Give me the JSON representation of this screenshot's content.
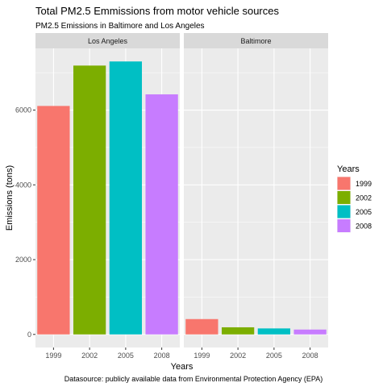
{
  "chart_data": {
    "type": "bar",
    "title": "Total PM2.5 Emmissions from motor vehicle sources",
    "subtitle": "PM2.5 Emissions in Baltimore and Los Angeles",
    "xlabel": "Years",
    "ylabel": "Emissions (tons)",
    "caption": "Datasource: publicly available data from Environmental Protection Agency (EPA)",
    "categories": [
      "1999",
      "2002",
      "2005",
      "2008"
    ],
    "ylim": [
      -350,
      7650
    ],
    "yticks": [
      0,
      2000,
      4000,
      6000
    ],
    "grid": true,
    "legend": {
      "title": "Years",
      "placement": "right",
      "entries": [
        "1999",
        "2002",
        "2005",
        "2008"
      ]
    },
    "colors": [
      "#F8766D",
      "#7CAE00",
      "#00BFC4",
      "#C77CFF"
    ],
    "panels": [
      {
        "name": "Los Angeles",
        "values": [
          6110,
          7190,
          7300,
          6420
        ]
      },
      {
        "name": "Baltimore",
        "values": [
          410,
          190,
          160,
          130
        ]
      }
    ]
  }
}
